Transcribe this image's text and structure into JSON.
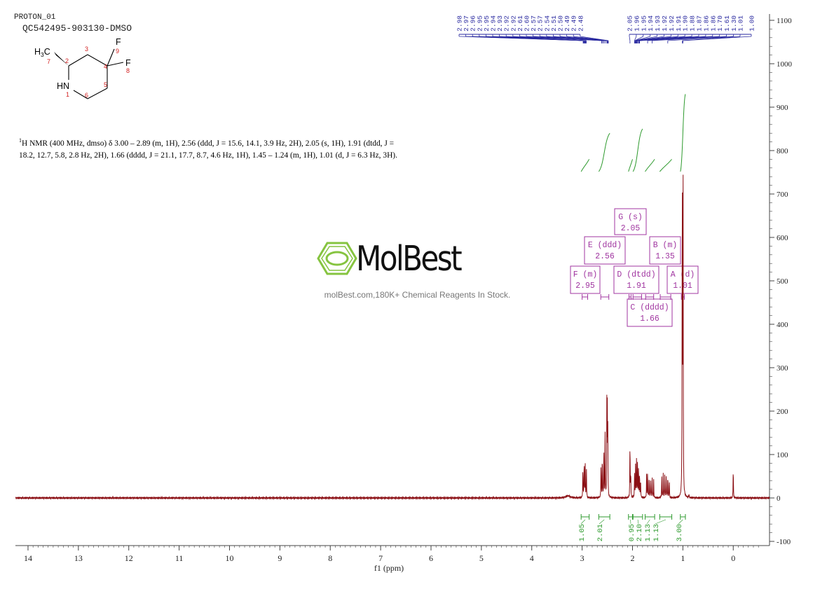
{
  "header": {
    "title": "PROTON_01",
    "sample_id": "QC542495-903130-DMSO"
  },
  "structure": {
    "atoms": {
      "c2": "2",
      "c3": "3",
      "c4": "4",
      "c5": "5",
      "c6": "6",
      "n1": "1",
      "c7": "7",
      "f8": "8",
      "f9": "9",
      "fluorine": "F",
      "nh": "HN",
      "methyl_h": "H",
      "methyl_sub": "3",
      "methyl_c": "C"
    }
  },
  "nmr_description": {
    "sup": "1",
    "text": "H NMR (400 MHz, dmso) δ 3.00 – 2.89 (m, 1H), 2.56 (ddd, J = 15.6, 14.1, 3.9 Hz, 2H), 2.05 (s, 1H), 1.91 (dtdd, J = 18.2, 12.7, 5.8, 2.8 Hz, 2H), 1.66 (dddd, J = 21.1, 17.7, 8.7, 4.6 Hz, 1H), 1.45 – 1.24 (m, 1H), 1.01 (d, J = 6.3 Hz, 3H)."
  },
  "watermark": {
    "brand": "MolBest",
    "tagline": "molBest.com,180K+ Chemical Reagents In Stock.",
    "color": "#86c440"
  },
  "colors": {
    "spectrum": "#8b0f14",
    "peak_labels": "#2a2aa0",
    "integral": "#2e9a2e",
    "multiplet_box": "#a035a0",
    "axis": "#444444"
  },
  "chart_data": {
    "type": "line",
    "title": "",
    "xlabel": "f1 (ppm)",
    "ylabel": "",
    "xlim": [
      14.25,
      -0.72
    ],
    "ylim": [
      -100,
      1110
    ],
    "x_ticks": [
      14,
      13,
      12,
      11,
      10,
      9,
      8,
      7,
      6,
      5,
      4,
      3,
      2,
      1,
      0
    ],
    "y_ticks": [
      1100,
      1000,
      900,
      800,
      700,
      600,
      500,
      400,
      300,
      200,
      100,
      0,
      -100
    ],
    "peak_labels": [
      "2.98",
      "2.97",
      "2.96",
      "2.95",
      "2.95",
      "2.94",
      "2.93",
      "2.92",
      "2.92",
      "2.61",
      "2.60",
      "2.57",
      "2.57",
      "2.54",
      "2.51",
      "2.50",
      "2.49",
      "2.49",
      "2.48",
      "2.05",
      "1.96",
      "1.95",
      "1.94",
      "1.93",
      "1.92",
      "1.92",
      "1.91",
      "1.90",
      "1.88",
      "1.87",
      "1.86",
      "1.86",
      "1.70",
      "1.61",
      "1.30",
      "1.01",
      "1.00"
    ],
    "peaks": [
      {
        "x": 3.28,
        "y": 5
      },
      {
        "x": 2.985,
        "y": 75
      },
      {
        "x": 2.96,
        "y": 95
      },
      {
        "x": 2.94,
        "y": 92
      },
      {
        "x": 2.915,
        "y": 70
      },
      {
        "x": 2.625,
        "y": 85
      },
      {
        "x": 2.6,
        "y": 105
      },
      {
        "x": 2.57,
        "y": 120
      },
      {
        "x": 2.545,
        "y": 160
      },
      {
        "x": 2.51,
        "y": 210
      },
      {
        "x": 2.5,
        "y": 190
      },
      {
        "x": 2.49,
        "y": 150
      },
      {
        "x": 2.05,
        "y": 140
      },
      {
        "x": 2.035,
        "y": 60
      },
      {
        "x": 1.96,
        "y": 55
      },
      {
        "x": 1.94,
        "y": 75
      },
      {
        "x": 1.92,
        "y": 90
      },
      {
        "x": 1.9,
        "y": 85
      },
      {
        "x": 1.88,
        "y": 75
      },
      {
        "x": 1.86,
        "y": 60
      },
      {
        "x": 1.84,
        "y": 45
      },
      {
        "x": 1.72,
        "y": 55
      },
      {
        "x": 1.7,
        "y": 60
      },
      {
        "x": 1.67,
        "y": 55
      },
      {
        "x": 1.64,
        "y": 50
      },
      {
        "x": 1.61,
        "y": 50
      },
      {
        "x": 1.58,
        "y": 40
      },
      {
        "x": 1.42,
        "y": 50
      },
      {
        "x": 1.39,
        "y": 55
      },
      {
        "x": 1.36,
        "y": 55
      },
      {
        "x": 1.33,
        "y": 55
      },
      {
        "x": 1.3,
        "y": 55
      },
      {
        "x": 1.27,
        "y": 45
      },
      {
        "x": 1.012,
        "y": 850
      },
      {
        "x": 0.997,
        "y": 850
      },
      {
        "x": 0.88,
        "y": 8
      },
      {
        "x": 0.0,
        "y": 75
      }
    ],
    "integrals": [
      {
        "label": "1.05",
        "from": 3.02,
        "to": 2.86,
        "level": 780
      },
      {
        "label": "2.01",
        "from": 2.67,
        "to": 2.45,
        "level": 840
      },
      {
        "label": "0.95",
        "from": 2.08,
        "to": 2.0,
        "level": 780
      },
      {
        "label": "2.10",
        "from": 1.99,
        "to": 1.8,
        "level": 850
      },
      {
        "label": "1.13",
        "from": 1.75,
        "to": 1.56,
        "level": 780
      },
      {
        "label": "1.13",
        "from": 1.46,
        "to": 1.22,
        "level": 780
      },
      {
        "label": "3.00",
        "from": 1.05,
        "to": 0.95,
        "level": 930
      }
    ],
    "multiplets": [
      {
        "name": "G (s)",
        "shift": "2.05"
      },
      {
        "name": "E (ddd)",
        "shift": "2.56"
      },
      {
        "name": "B (m)",
        "shift": "1.35"
      },
      {
        "name": "F (m)",
        "shift": "2.95"
      },
      {
        "name": "D (dtdd)",
        "shift": "1.91"
      },
      {
        "name": "A (d)",
        "shift": "1.01"
      },
      {
        "name": "C (dddd)",
        "shift": "1.66"
      }
    ]
  }
}
